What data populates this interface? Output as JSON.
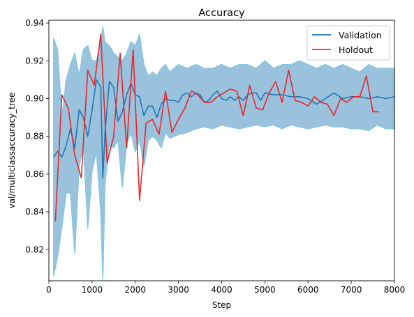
{
  "chart_data": {
    "type": "line",
    "title": "Accuracy",
    "xlabel": "Step",
    "ylabel": "val/multiclassaccuracy_tree",
    "xlim": [
      0,
      8000
    ],
    "ylim": [
      0.8035,
      0.9415
    ],
    "xticks": [
      0,
      1000,
      2000,
      3000,
      4000,
      5000,
      6000,
      7000,
      8000
    ],
    "xtick_labels": [
      "0",
      "1000",
      "2000",
      "3000",
      "4000",
      "5000",
      "6000",
      "7000",
      "8000"
    ],
    "yticks": [
      0.82,
      0.84,
      0.86,
      0.88,
      0.9,
      0.92,
      0.94
    ],
    "ytick_labels": [
      "0.82",
      "0.84",
      "0.86",
      "0.88",
      "0.90",
      "0.92",
      "0.94"
    ],
    "grid": false,
    "legend_position": "top-right",
    "band": {
      "color": "#1f77b4",
      "edge_color": "#87c6de",
      "x": [
        110,
        200,
        300,
        400,
        500,
        600,
        700,
        800,
        900,
        1000,
        1100,
        1200,
        1250,
        1300,
        1400,
        1500,
        1600,
        1700,
        1800,
        1900,
        2000,
        2100,
        2200,
        2300,
        2400,
        2500,
        2600,
        2700,
        2800,
        2900,
        3000,
        3200,
        3400,
        3600,
        3800,
        4000,
        4200,
        4400,
        4600,
        4800,
        5000,
        5200,
        5400,
        5600,
        5800,
        6000,
        6200,
        6400,
        6600,
        6800,
        7000,
        7200,
        7400,
        7600,
        7800,
        8000
      ],
      "upper": [
        0.932,
        0.926,
        0.89,
        0.91,
        0.918,
        0.924,
        0.912,
        0.926,
        0.928,
        0.92,
        0.92,
        0.93,
        0.938,
        0.93,
        0.928,
        0.924,
        0.922,
        0.92,
        0.924,
        0.93,
        0.928,
        0.934,
        0.918,
        0.912,
        0.914,
        0.912,
        0.916,
        0.918,
        0.914,
        0.916,
        0.918,
        0.916,
        0.918,
        0.916,
        0.916,
        0.918,
        0.916,
        0.918,
        0.918,
        0.916,
        0.92,
        0.916,
        0.918,
        0.918,
        0.92,
        0.918,
        0.916,
        0.918,
        0.916,
        0.918,
        0.916,
        0.914,
        0.918,
        0.916,
        0.916,
        0.916
      ],
      "lower": [
        0.806,
        0.816,
        0.832,
        0.85,
        0.85,
        0.818,
        0.864,
        0.876,
        0.831,
        0.862,
        0.872,
        0.84,
        0.804,
        0.855,
        0.875,
        0.874,
        0.878,
        0.853,
        0.876,
        0.882,
        0.872,
        0.878,
        0.864,
        0.878,
        0.88,
        0.878,
        0.874,
        0.882,
        0.879,
        0.88,
        0.881,
        0.882,
        0.884,
        0.885,
        0.884,
        0.886,
        0.885,
        0.884,
        0.885,
        0.886,
        0.885,
        0.886,
        0.884,
        0.886,
        0.885,
        0.884,
        0.885,
        0.886,
        0.885,
        0.885,
        0.884,
        0.884,
        0.883,
        0.886,
        0.884,
        0.884
      ]
    },
    "series": [
      {
        "name": "Validation",
        "color": "#1f77b4",
        "x": [
          110,
          200,
          300,
          400,
          500,
          600,
          700,
          800,
          900,
          1000,
          1100,
          1200,
          1250,
          1300,
          1400,
          1500,
          1600,
          1700,
          1800,
          1900,
          2000,
          2100,
          2200,
          2300,
          2400,
          2500,
          2600,
          2700,
          2800,
          2900,
          3000,
          3100,
          3200,
          3300,
          3400,
          3500,
          3600,
          3700,
          3800,
          3900,
          4000,
          4100,
          4200,
          4300,
          4400,
          4500,
          4600,
          4700,
          4800,
          4900,
          5000,
          5200,
          5400,
          5600,
          5800,
          6000,
          6200,
          6400,
          6600,
          6800,
          7000,
          7200,
          7400,
          7600,
          7800,
          8000
        ],
        "y": [
          0.869,
          0.872,
          0.869,
          0.875,
          0.884,
          0.874,
          0.894,
          0.89,
          0.88,
          0.894,
          0.91,
          0.906,
          0.858,
          0.882,
          0.909,
          0.906,
          0.888,
          0.893,
          0.902,
          0.908,
          0.902,
          0.901,
          0.891,
          0.896,
          0.896,
          0.89,
          0.897,
          0.9,
          0.899,
          0.899,
          0.898,
          0.902,
          0.903,
          0.901,
          0.903,
          0.902,
          0.898,
          0.899,
          0.902,
          0.904,
          0.9,
          0.899,
          0.901,
          0.899,
          0.901,
          0.899,
          0.902,
          0.903,
          0.903,
          0.899,
          0.903,
          0.902,
          0.902,
          0.901,
          0.901,
          0.9,
          0.897,
          0.9,
          0.903,
          0.9,
          0.901,
          0.901,
          0.9,
          0.901,
          0.9,
          0.901
        ]
      },
      {
        "name": "Holdout",
        "color": "#e8262a",
        "x": [
          150,
          300,
          450,
          600,
          750,
          900,
          1050,
          1200,
          1350,
          1500,
          1650,
          1800,
          1950,
          2100,
          2250,
          2400,
          2550,
          2700,
          2850,
          3000,
          3150,
          3300,
          3450,
          3600,
          3750,
          3900,
          4050,
          4200,
          4350,
          4500,
          4650,
          4800,
          4950,
          5100,
          5250,
          5400,
          5550,
          5700,
          5850,
          6000,
          6150,
          6300,
          6450,
          6600,
          6750,
          6900,
          7050,
          7200,
          7350,
          7500,
          7650
        ],
        "y": [
          0.835,
          0.902,
          0.895,
          0.87,
          0.858,
          0.915,
          0.907,
          0.934,
          0.866,
          0.88,
          0.924,
          0.874,
          0.926,
          0.846,
          0.887,
          0.889,
          0.881,
          0.904,
          0.882,
          0.889,
          0.895,
          0.904,
          0.902,
          0.898,
          0.898,
          0.901,
          0.903,
          0.905,
          0.904,
          0.891,
          0.907,
          0.895,
          0.894,
          0.903,
          0.909,
          0.898,
          0.915,
          0.899,
          0.898,
          0.896,
          0.901,
          0.898,
          0.897,
          0.891,
          0.9,
          0.898,
          0.901,
          0.901,
          0.912,
          0.893,
          0.893
        ]
      }
    ]
  }
}
